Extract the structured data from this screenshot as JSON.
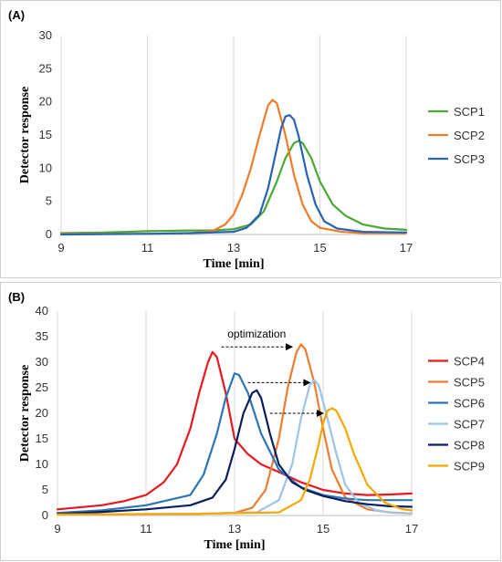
{
  "chart_data": [
    {
      "type": "line",
      "panel_label": "(A)",
      "xlabel": "Time [min]",
      "ylabel": "Detector response",
      "xlim": [
        9,
        17
      ],
      "ylim": [
        0,
        30
      ],
      "xticks": [
        9,
        11,
        13,
        15,
        17
      ],
      "yticks": [
        0,
        5,
        10,
        15,
        20,
        25,
        30
      ],
      "grid": "vertical",
      "legend": "right",
      "series": [
        {
          "name": "SCP1",
          "color": "#4aa834",
          "x": [
            9,
            10,
            11,
            12,
            12.5,
            13,
            13.4,
            13.7,
            14,
            14.2,
            14.4,
            14.5,
            14.6,
            14.8,
            15,
            15.3,
            15.6,
            16,
            16.5,
            17
          ],
          "y": [
            0.2,
            0.3,
            0.5,
            0.6,
            0.6,
            0.8,
            1.5,
            3.5,
            8,
            11.5,
            13.8,
            14.1,
            13.8,
            11.5,
            8,
            4.5,
            2.8,
            1.5,
            0.9,
            0.7
          ]
        },
        {
          "name": "SCP2",
          "color": "#f07c28",
          "x": [
            9,
            11,
            12,
            12.5,
            12.8,
            13,
            13.2,
            13.4,
            13.6,
            13.8,
            13.9,
            14,
            14.2,
            14.4,
            14.6,
            14.8,
            15,
            15.5,
            16,
            17
          ],
          "y": [
            0.1,
            0.1,
            0.2,
            0.5,
            1.5,
            3,
            6,
            10,
            15,
            19.5,
            20.3,
            19.8,
            15,
            9,
            4.5,
            2,
            1,
            0.4,
            0.2,
            0.2
          ]
        },
        {
          "name": "SCP3",
          "color": "#2864b4",
          "x": [
            9,
            11,
            12,
            13,
            13.3,
            13.6,
            13.8,
            14,
            14.1,
            14.2,
            14.3,
            14.4,
            14.5,
            14.7,
            14.9,
            15.1,
            15.4,
            16,
            17
          ],
          "y": [
            0,
            0.1,
            0.2,
            0.4,
            1,
            3,
            7,
            13,
            16,
            17.8,
            18,
            17.3,
            15,
            9,
            4.5,
            2,
            0.9,
            0.4,
            0.3
          ]
        }
      ]
    },
    {
      "type": "line",
      "panel_label": "(B)",
      "xlabel": "Time [min]",
      "ylabel": "Detector response",
      "xlim": [
        9,
        17
      ],
      "ylim": [
        0,
        40
      ],
      "xticks": [
        9,
        11,
        13,
        15,
        17
      ],
      "yticks": [
        0,
        5,
        10,
        15,
        20,
        25,
        30,
        35,
        40
      ],
      "grid": "vertical",
      "legend": "right",
      "annotation": {
        "text": "optimization"
      },
      "arrows": [
        {
          "x1": 12.7,
          "x2": 14.3,
          "y": 33
        },
        {
          "x1": 13.3,
          "x2": 14.7,
          "y": 26
        },
        {
          "x1": 13.8,
          "x2": 15.0,
          "y": 20
        }
      ],
      "series": [
        {
          "name": "SCP4",
          "color": "#e8191e",
          "x": [
            9,
            10,
            10.5,
            11,
            11.4,
            11.7,
            12,
            12.2,
            12.4,
            12.5,
            12.6,
            12.8,
            13,
            13.3,
            13.6,
            14,
            14.5,
            15,
            15.5,
            16,
            16.5,
            17
          ],
          "y": [
            1.2,
            2,
            2.8,
            4,
            6.5,
            10,
            17,
            24,
            30,
            32,
            31,
            24,
            15,
            12,
            10,
            8.5,
            6.5,
            5,
            4.3,
            4,
            4.1,
            4.3
          ]
        },
        {
          "name": "SCP5",
          "color": "#ed7d31",
          "x": [
            9,
            12,
            13,
            13.4,
            13.7,
            14,
            14.2,
            14.4,
            14.5,
            14.6,
            14.8,
            15,
            15.2,
            15.5,
            16,
            16.5,
            17
          ],
          "y": [
            0.2,
            0.3,
            0.5,
            1.5,
            5,
            15,
            25,
            32,
            33.5,
            32.5,
            26,
            17,
            9,
            3.5,
            1.2,
            0.6,
            0.4
          ]
        },
        {
          "name": "SCP6",
          "color": "#2e75b6",
          "x": [
            9,
            10,
            11,
            11.5,
            12,
            12.3,
            12.6,
            12.8,
            13,
            13.1,
            13.3,
            13.6,
            14,
            14.5,
            15,
            15.5,
            16,
            16.5,
            17
          ],
          "y": [
            0.5,
            1,
            2,
            3,
            4,
            8,
            16,
            23,
            27.8,
            27.5,
            24,
            16,
            9,
            5.5,
            4,
            3.3,
            3,
            3,
            3
          ]
        },
        {
          "name": "SCP7",
          "color": "#9dc3e6",
          "x": [
            9,
            12,
            13.5,
            14,
            14.3,
            14.5,
            14.7,
            14.8,
            14.9,
            15.1,
            15.3,
            15.5,
            15.8,
            16.2,
            16.6,
            17
          ],
          "y": [
            0.2,
            0.3,
            0.6,
            3,
            10,
            19,
            25.5,
            26.5,
            25.5,
            19,
            12,
            6,
            2.5,
            1,
            0.5,
            0.4
          ]
        },
        {
          "name": "SCP8",
          "color": "#0b1f5c",
          "x": [
            9,
            10,
            11,
            12,
            12.5,
            12.8,
            13,
            13.2,
            13.4,
            13.5,
            13.6,
            13.8,
            14,
            14.3,
            14.6,
            15,
            15.5,
            16,
            16.5,
            17
          ],
          "y": [
            0.3,
            0.7,
            1.2,
            2,
            3.5,
            7,
            13,
            20,
            24,
            24.5,
            23,
            16,
            10,
            6.5,
            5,
            3.8,
            2.8,
            2.2,
            1.8,
            1.7
          ]
        },
        {
          "name": "SCP9",
          "color": "#f6a800",
          "x": [
            9,
            12,
            14,
            14.5,
            14.7,
            14.9,
            15,
            15.1,
            15.2,
            15.3,
            15.5,
            15.7,
            16,
            16.4,
            16.8,
            17
          ],
          "y": [
            0.2,
            0.3,
            0.6,
            3,
            7,
            14,
            18,
            20.5,
            21,
            20.5,
            17,
            12,
            6,
            2.5,
            1.2,
            1
          ]
        }
      ]
    }
  ]
}
